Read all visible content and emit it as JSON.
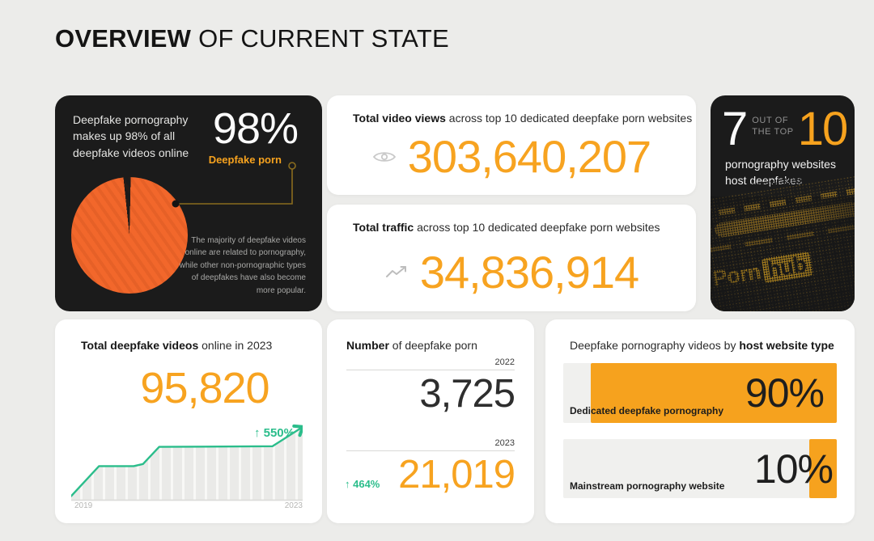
{
  "header": {
    "title_bold": "OVERVIEW",
    "title_rest": "OF CURRENT STATE"
  },
  "colors": {
    "background": "#ECECEA",
    "card_dark": "#1B1B1B",
    "accent_orange": "#F6A21E",
    "number_orange": "#F7A320",
    "pie_orange": "#F2672B",
    "accent_green": "#2BBD8B"
  },
  "cards": {
    "pie": {
      "description": "Deepfake pornography makes up 98% of all deepfake videos online",
      "big_value": "98%",
      "big_label": "Deepfake porn",
      "footnote": "The majority of deepfake videos online are related to pornography, while other non-pornographic types of deepfakes have also become more popular."
    },
    "views": {
      "title_bold": "Total video views",
      "title_rest": " across top 10 dedicated deepfake porn websites",
      "value": "303,640,207",
      "icon": "eye-icon"
    },
    "traffic": {
      "title_bold": "Total traffic",
      "title_rest": " across top 10 dedicated deepfake porn websites",
      "value": "34,836,914",
      "icon": "trending-up-icon"
    },
    "top10": {
      "left_number": "7",
      "mid_line1": "OUT OF",
      "mid_line2": "THE TOP",
      "right_number": "10",
      "description": "pornography websites host deepfakes",
      "wordmark_left": "Porn",
      "wordmark_right": "hub"
    },
    "total_videos": {
      "title_bold": "Total deepfake videos",
      "title_rest": " online in 2023",
      "value": "95,820",
      "growth": "↑ 550%",
      "axis_start": "2019",
      "axis_end": "2023"
    },
    "number_porn": {
      "title_bold": "Number",
      "title_rest": " of deepfake porn",
      "year1": "2022",
      "value1": "3,725",
      "year2": "2023",
      "value2": "21,019",
      "growth": "↑ 464%"
    },
    "host_type": {
      "title_rest": "Deepfake pornography videos by ",
      "title_bold": "host website type",
      "bars": [
        {
          "label": "Dedicated deepfake pornography",
          "pct_label": "90%"
        },
        {
          "label": "Mainstream pornography website",
          "pct_label": "10%"
        }
      ]
    }
  },
  "chart_data": [
    {
      "type": "pie",
      "title": "Deepfake pornography makes up 98% of all deepfake videos online",
      "slices": [
        {
          "label": "Deepfake porn",
          "value": 98
        },
        {
          "label": "Other deepfake videos",
          "value": 2
        }
      ],
      "colors": [
        "#F2672B",
        "#1B1B1B"
      ],
      "legend_position": "callout-right"
    },
    {
      "type": "line",
      "title": "Total deepfake videos online in 2023",
      "headline_value": 95820,
      "growth_label": "↑ 550%",
      "x_range": [
        "2019",
        "2023"
      ],
      "points_normalized": [
        [
          0,
          0.03
        ],
        [
          0.12,
          0.45
        ],
        [
          0.27,
          0.45
        ],
        [
          0.31,
          0.48
        ],
        [
          0.38,
          0.72
        ],
        [
          0.87,
          0.73
        ],
        [
          1,
          1
        ]
      ],
      "grid": "vertical-stripes-under-area"
    },
    {
      "type": "bar",
      "title": "Deepfake pornography videos by host website type",
      "categories": [
        "Dedicated deepfake pornography",
        "Mainstream pornography website"
      ],
      "values": [
        90,
        10
      ],
      "unit": "%",
      "orientation": "horizontal-right-aligned"
    },
    {
      "type": "table",
      "title": "Number of deepfake porn",
      "categories": [
        "2022",
        "2023"
      ],
      "values": [
        3725,
        21019
      ],
      "growth_label": "↑ 464%"
    }
  ]
}
